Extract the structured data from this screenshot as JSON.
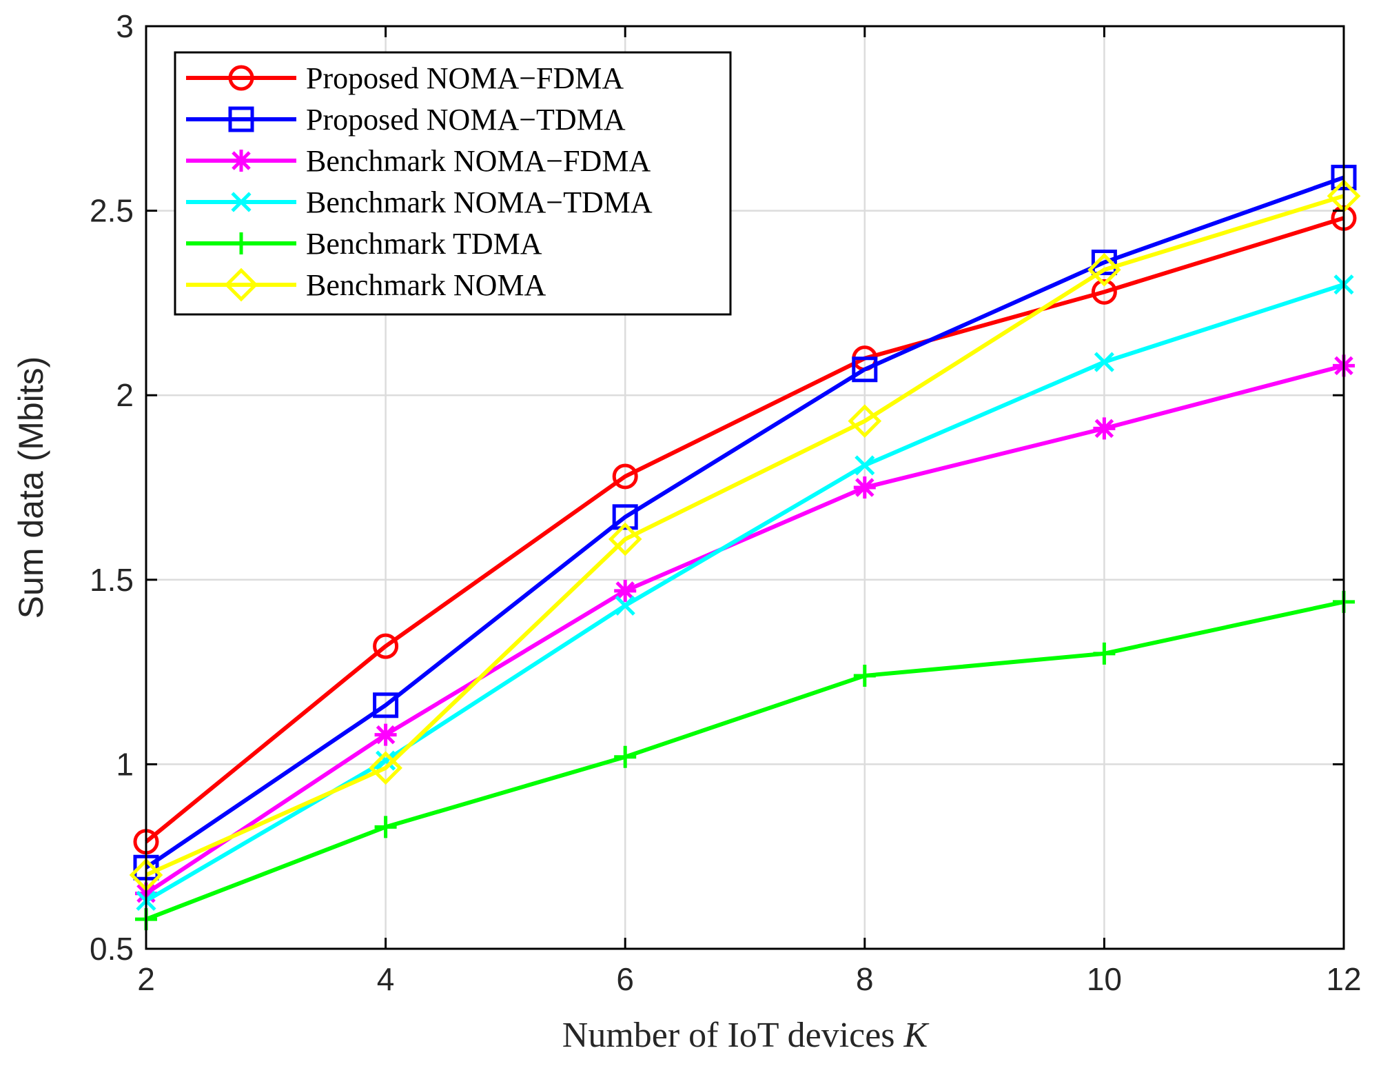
{
  "chart_data": {
    "type": "line",
    "title": "",
    "xlabel": "Number of IoT devices",
    "xlabel_var": "K",
    "ylabel": "Sum data (Mbits)",
    "x": [
      2,
      4,
      6,
      8,
      10,
      12
    ],
    "xlim": [
      2,
      12
    ],
    "ylim": [
      0.5,
      3
    ],
    "xticks": [
      2,
      4,
      6,
      8,
      10,
      12
    ],
    "xtick_labels": [
      "2",
      "4",
      "6",
      "8",
      "10",
      "12"
    ],
    "yticks": [
      0.5,
      1,
      1.5,
      2,
      2.5,
      3
    ],
    "ytick_labels": [
      "0.5",
      "1",
      "1.5",
      "2",
      "2.5",
      "3"
    ],
    "grid": true,
    "legend_position": "top-left",
    "series": [
      {
        "name": "Proposed NOMA−FDMA",
        "color": "#ff0000",
        "marker": "circle",
        "values": [
          0.79,
          1.32,
          1.78,
          2.1,
          2.28,
          2.48
        ]
      },
      {
        "name": "Proposed NOMA−TDMA",
        "color": "#0000ff",
        "marker": "square",
        "values": [
          0.72,
          1.16,
          1.67,
          2.07,
          2.36,
          2.59
        ]
      },
      {
        "name": "Benchmark NOMA−FDMA",
        "color": "#ff00ff",
        "marker": "asterisk",
        "values": [
          0.65,
          1.08,
          1.47,
          1.75,
          1.91,
          2.08
        ]
      },
      {
        "name": "Benchmark NOMA−TDMA",
        "color": "#00ffff",
        "marker": "x",
        "values": [
          0.63,
          1.01,
          1.43,
          1.81,
          2.09,
          2.3
        ]
      },
      {
        "name": "Benchmark TDMA",
        "color": "#00ff00",
        "marker": "plus",
        "values": [
          0.58,
          0.83,
          1.02,
          1.24,
          1.3,
          1.44
        ]
      },
      {
        "name": "Benchmark NOMA",
        "color": "#ffff00",
        "marker": "diamond",
        "values": [
          0.7,
          0.99,
          1.61,
          1.93,
          2.34,
          2.54
        ]
      }
    ]
  }
}
